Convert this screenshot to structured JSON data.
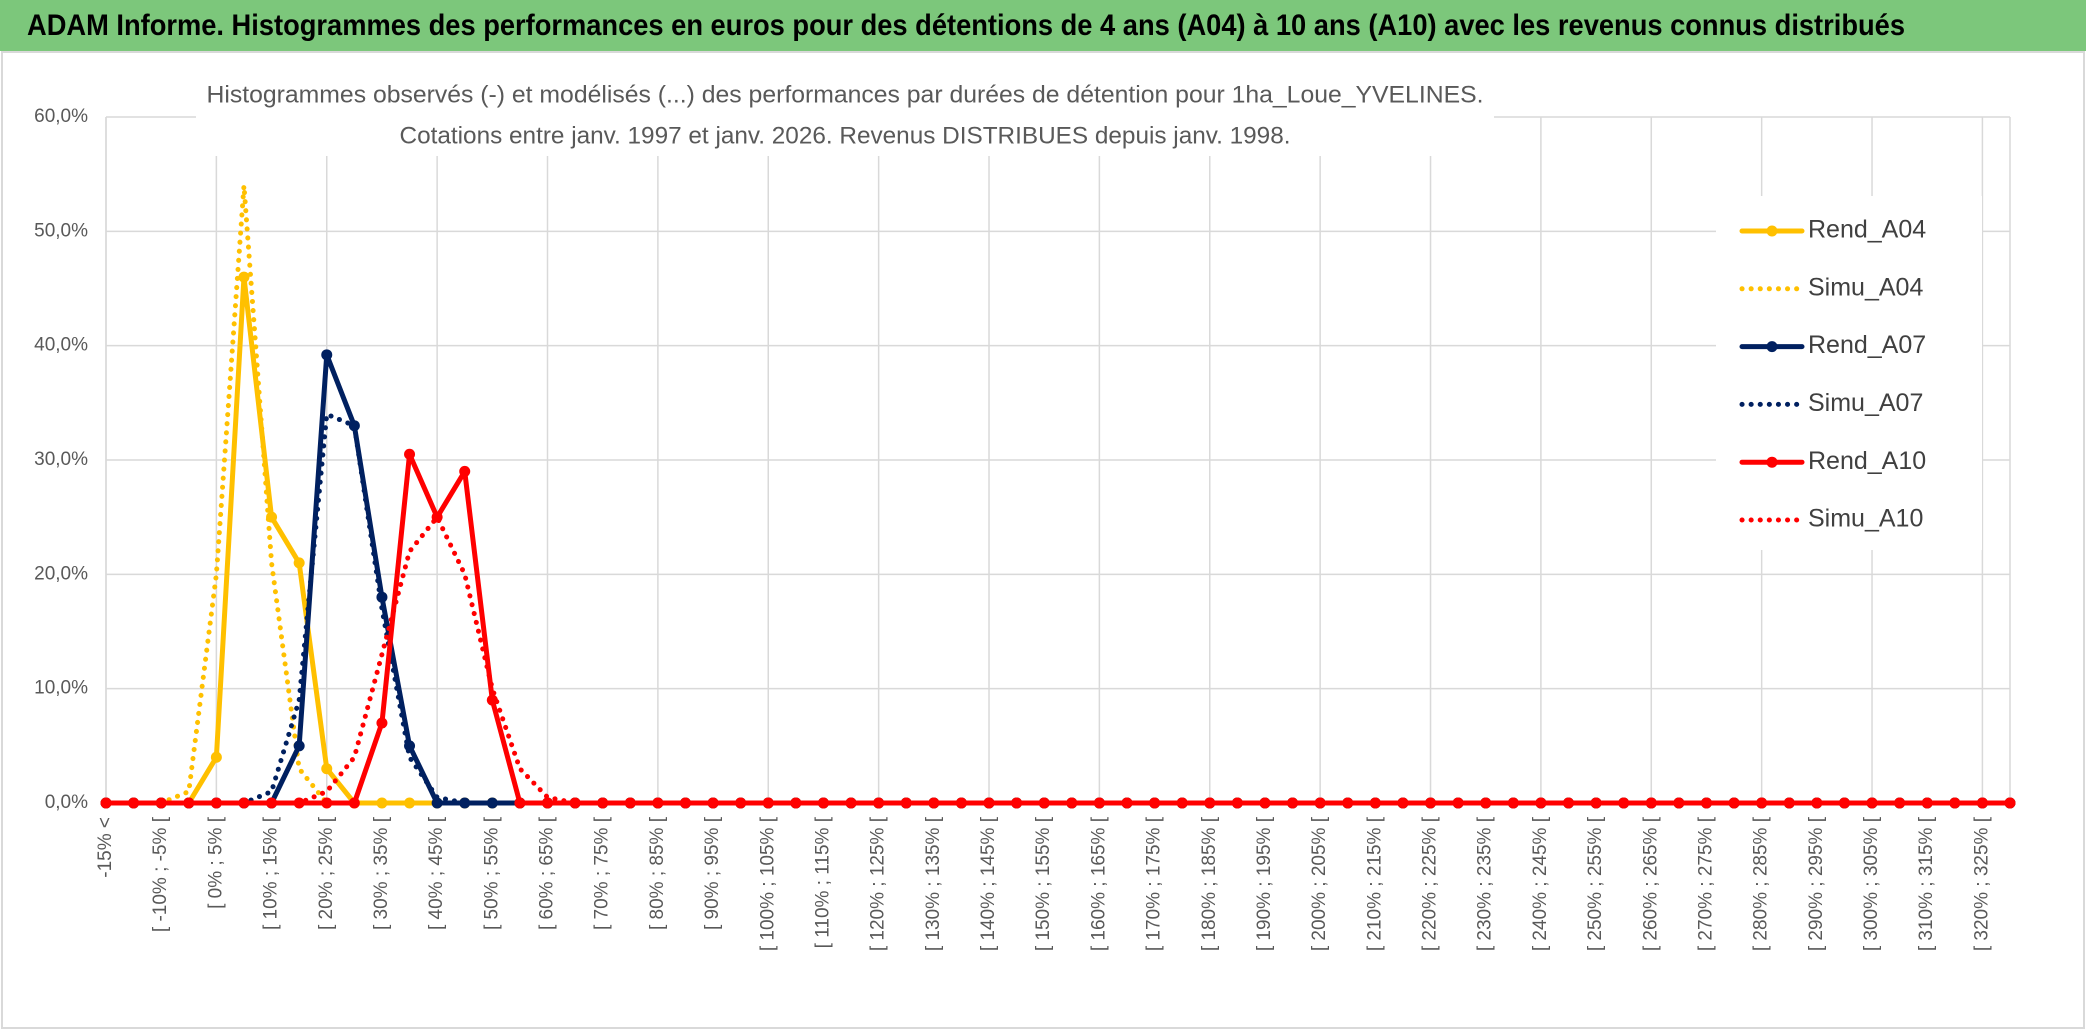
{
  "chart_data": {
    "type": "line",
    "title": "ADAM Informe. Histogrammes des performances en euros pour des détentions de 4 ans (A04) à 10 ans (A10) avec les revenus connus distribués",
    "subtitle": [
      "Histogrammes observés (-) et modélisés (...) des performances par durées de détention pour 1ha_Loue_YVELINES.",
      "Cotations entre janv. 1997 et janv. 2026. Revenus DISTRIBUES depuis janv. 1998."
    ],
    "categories": [
      "-15% <",
      null,
      "[ -10% ; -5% [",
      null,
      "[ 0% ; 5% [",
      null,
      "[ 10% ; 15% [",
      null,
      "[ 20% ; 25% [",
      null,
      "[ 30% ; 35% [",
      null,
      "[ 40% ; 45% [",
      null,
      "[ 50% ; 55% [",
      null,
      "[ 60% ; 65% [",
      null,
      "[ 70% ; 75% [",
      null,
      "[ 80% ; 85% [",
      null,
      "[ 90% ; 95% [",
      null,
      "[ 100% ; 105% [",
      null,
      "[ 110% ; 115% [",
      null,
      "[ 120% ; 125% [",
      null,
      "[ 130% ; 135% [",
      null,
      "[ 140% ; 145% [",
      null,
      "[ 150% ; 155% [",
      null,
      "[ 160% ; 165% [",
      null,
      "[ 170% ; 175% [",
      null,
      "[ 180% ; 185% [",
      null,
      "[ 190% ; 195% [",
      null,
      "[ 200% ; 205% [",
      null,
      "[ 210% ; 215% [",
      null,
      "[ 220% ; 225% [",
      null,
      "[ 230% ; 235% [",
      null,
      "[ 240% ; 245% [",
      null,
      "[ 250% ; 255% [",
      null,
      "[ 260% ; 265% [",
      null,
      "[ 270% ; 275% [",
      null,
      "[ 280% ; 285% [",
      null,
      "[ 290% ; 295% [",
      null,
      "[ 300% ; 305% [",
      null,
      "[ 310% ; 315% [",
      null,
      "[ 320% ; 325% [",
      null
    ],
    "series": [
      {
        "name": "Rend_A04",
        "color": "#FFC000",
        "style": "solid",
        "values": [
          0,
          0,
          0,
          0,
          4,
          46,
          25,
          21,
          3,
          0,
          0,
          0,
          0,
          0,
          0,
          0,
          0,
          0,
          0,
          0,
          0,
          0,
          0,
          0,
          0,
          0,
          0,
          0,
          0,
          0,
          0,
          0,
          0,
          0,
          0,
          0,
          0,
          0,
          0,
          0,
          0,
          0,
          0,
          0,
          0,
          0,
          0,
          0,
          0,
          0,
          0,
          0,
          0,
          0,
          0,
          0,
          0,
          0,
          0,
          0,
          0,
          0,
          0,
          0,
          0,
          0,
          0,
          0,
          0,
          0
        ]
      },
      {
        "name": "Simu_A04",
        "color": "#FFC000",
        "style": "dotted",
        "values": [
          0,
          0,
          0,
          1,
          20,
          54,
          21,
          3,
          0,
          0,
          0,
          0,
          0,
          0,
          0,
          0,
          0,
          0,
          0,
          0,
          0,
          0,
          0,
          0,
          0,
          0,
          0,
          0,
          0,
          0,
          0,
          0,
          0,
          0,
          0,
          0,
          0,
          0,
          0,
          0,
          0,
          0,
          0,
          0,
          0,
          0,
          0,
          0,
          0,
          0,
          0,
          0,
          0,
          0,
          0,
          0,
          0,
          0,
          0,
          0,
          0,
          0,
          0,
          0,
          0,
          0,
          0,
          0,
          0,
          0
        ]
      },
      {
        "name": "Rend_A07",
        "color": "#002060",
        "style": "solid",
        "values": [
          0,
          0,
          0,
          0,
          0,
          0,
          0,
          5,
          39.2,
          33,
          18,
          5,
          0,
          0,
          0,
          0,
          0,
          0,
          0,
          0,
          0,
          0,
          0,
          0,
          0,
          0,
          0,
          0,
          0,
          0,
          0,
          0,
          0,
          0,
          0,
          0,
          0,
          0,
          0,
          0,
          0,
          0,
          0,
          0,
          0,
          0,
          0,
          0,
          0,
          0,
          0,
          0,
          0,
          0,
          0,
          0,
          0,
          0,
          0,
          0,
          0,
          0,
          0,
          0,
          0,
          0,
          0,
          0,
          0,
          0
        ]
      },
      {
        "name": "Simu_A07",
        "color": "#002060",
        "style": "dotted",
        "values": [
          0,
          0,
          0,
          0,
          0,
          0,
          1,
          9,
          34,
          33,
          17,
          4,
          0.5,
          0,
          0,
          0,
          0,
          0,
          0,
          0,
          0,
          0,
          0,
          0,
          0,
          0,
          0,
          0,
          0,
          0,
          0,
          0,
          0,
          0,
          0,
          0,
          0,
          0,
          0,
          0,
          0,
          0,
          0,
          0,
          0,
          0,
          0,
          0,
          0,
          0,
          0,
          0,
          0,
          0,
          0,
          0,
          0,
          0,
          0,
          0,
          0,
          0,
          0,
          0,
          0,
          0,
          0,
          0,
          0,
          0
        ]
      },
      {
        "name": "Rend_A10",
        "color": "#FF0000",
        "style": "solid",
        "values": [
          0,
          0,
          0,
          0,
          0,
          0,
          0,
          0,
          0,
          0,
          7,
          30.5,
          25,
          29,
          9,
          0,
          0,
          0,
          0,
          0,
          0,
          0,
          0,
          0,
          0,
          0,
          0,
          0,
          0,
          0,
          0,
          0,
          0,
          0,
          0,
          0,
          0,
          0,
          0,
          0,
          0,
          0,
          0,
          0,
          0,
          0,
          0,
          0,
          0,
          0,
          0,
          0,
          0,
          0,
          0,
          0,
          0,
          0,
          0,
          0,
          0,
          0,
          0,
          0,
          0,
          0,
          0,
          0,
          0,
          0
        ]
      },
      {
        "name": "Simu_A10",
        "color": "#FF0000",
        "style": "dotted",
        "values": [
          0,
          0,
          0,
          0,
          0,
          0,
          0,
          0,
          1,
          4,
          13,
          22,
          25,
          20,
          10,
          3,
          0.5,
          0,
          0,
          0,
          0,
          0,
          0,
          0,
          0,
          0,
          0,
          0,
          0,
          0,
          0,
          0,
          0,
          0,
          0,
          0,
          0,
          0,
          0,
          0,
          0,
          0,
          0,
          0,
          0,
          0,
          0,
          0,
          0,
          0,
          0,
          0,
          0,
          0,
          0,
          0,
          0,
          0,
          0,
          0,
          0,
          0,
          0,
          0,
          0,
          0,
          0,
          0,
          0,
          0
        ]
      }
    ],
    "ylim": [
      0,
      60
    ],
    "yticks": [
      {
        "value": 0,
        "label": "0,0%"
      },
      {
        "value": 10,
        "label": "10,0%"
      },
      {
        "value": 20,
        "label": "20,0%"
      },
      {
        "value": 30,
        "label": "30,0%"
      },
      {
        "value": 40,
        "label": "40,0%"
      },
      {
        "value": 50,
        "label": "50,0%"
      },
      {
        "value": 60,
        "label": "60,0%"
      }
    ],
    "grid": true,
    "legend": "right"
  }
}
